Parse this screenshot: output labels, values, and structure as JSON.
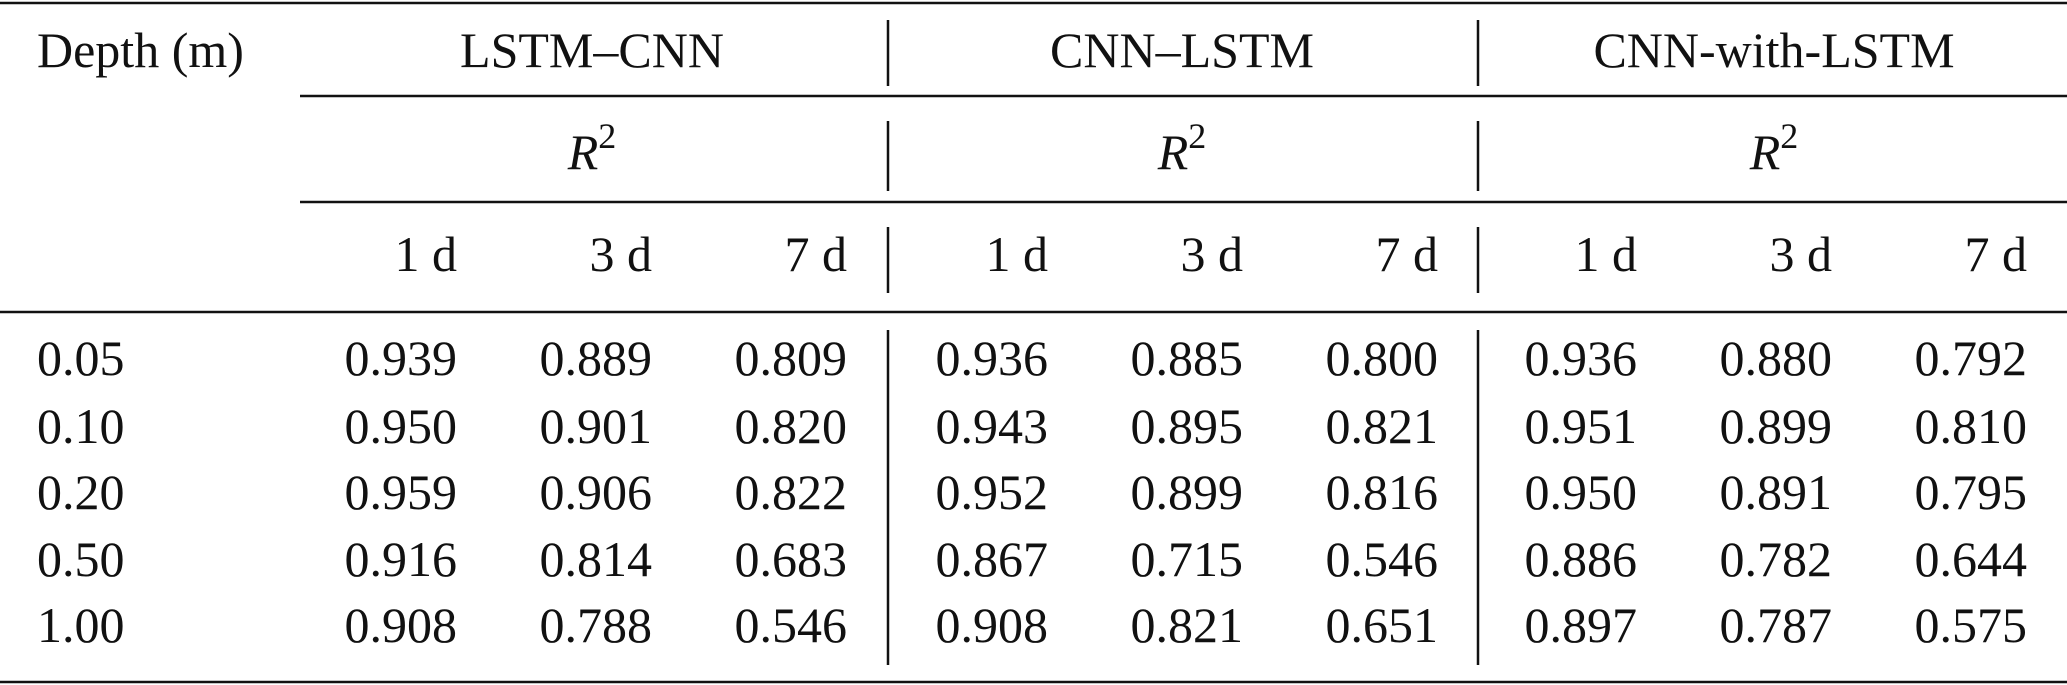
{
  "table": {
    "depth_label": "Depth (m)",
    "groups": [
      {
        "name": "LSTM–CNN",
        "metric": "R",
        "metric_sup": "2",
        "horizons": [
          "1 d",
          "3 d",
          "7 d"
        ]
      },
      {
        "name": "CNN–LSTM",
        "metric": "R",
        "metric_sup": "2",
        "horizons": [
          "1 d",
          "3 d",
          "7 d"
        ]
      },
      {
        "name": "CNN-with-LSTM",
        "metric": "R",
        "metric_sup": "2",
        "horizons": [
          "1 d",
          "3 d",
          "7 d"
        ]
      }
    ],
    "rows": [
      {
        "depth": "0.05",
        "values": [
          "0.939",
          "0.889",
          "0.809",
          "0.936",
          "0.885",
          "0.800",
          "0.936",
          "0.880",
          "0.792"
        ]
      },
      {
        "depth": "0.10",
        "values": [
          "0.950",
          "0.901",
          "0.820",
          "0.943",
          "0.895",
          "0.821",
          "0.951",
          "0.899",
          "0.810"
        ]
      },
      {
        "depth": "0.20",
        "values": [
          "0.959",
          "0.906",
          "0.822",
          "0.952",
          "0.899",
          "0.816",
          "0.950",
          "0.891",
          "0.795"
        ]
      },
      {
        "depth": "0.50",
        "values": [
          "0.916",
          "0.814",
          "0.683",
          "0.867",
          "0.715",
          "0.546",
          "0.886",
          "0.782",
          "0.644"
        ]
      },
      {
        "depth": "1.00",
        "values": [
          "0.908",
          "0.788",
          "0.546",
          "0.908",
          "0.821",
          "0.651",
          "0.897",
          "0.787",
          "0.575"
        ]
      }
    ]
  }
}
